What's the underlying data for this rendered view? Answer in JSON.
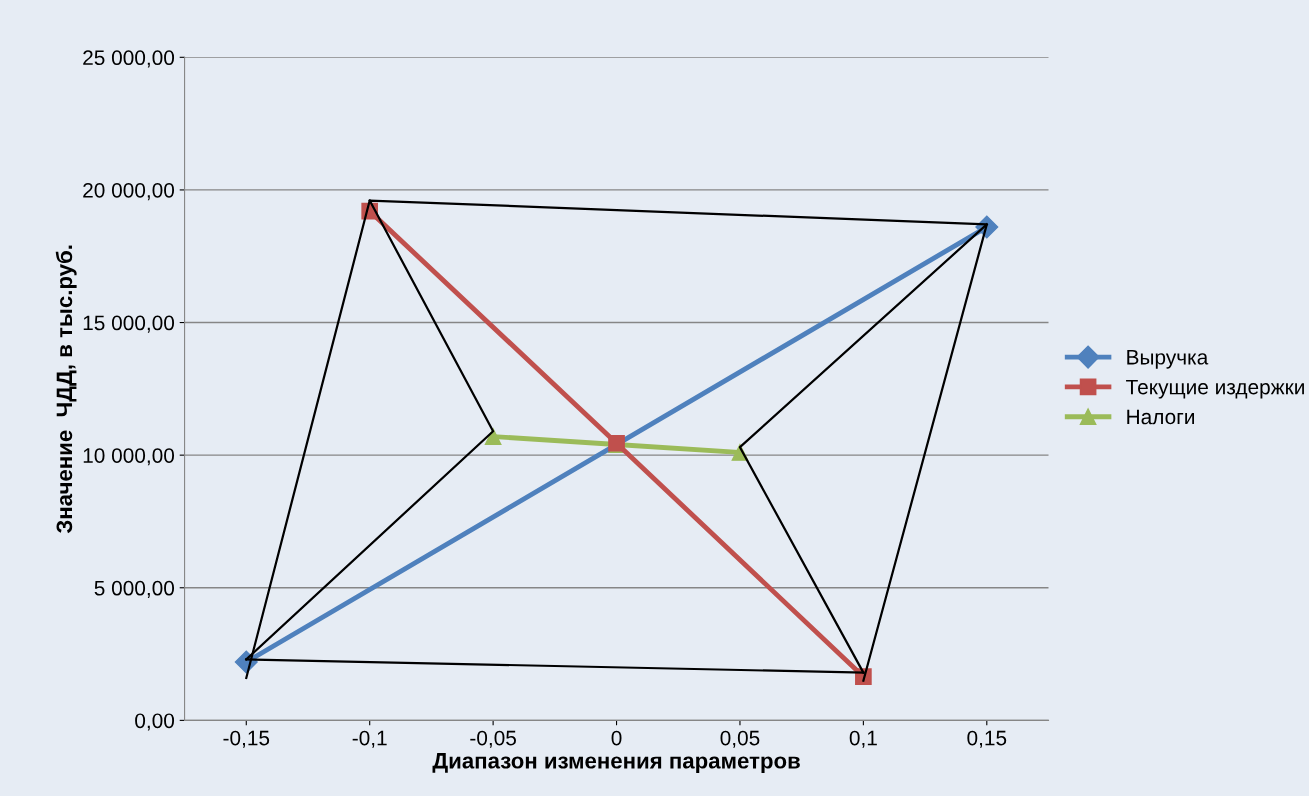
{
  "chart_data": {
    "type": "line",
    "xlabel": "Диапазон изменения параметров",
    "ylabel": "Значение  ЧДД, в тыс.руб.",
    "xlim": [
      -0.175,
      0.175
    ],
    "xticks": [
      {
        "value": -0.15,
        "label": "-0,15"
      },
      {
        "value": -0.1,
        "label": "-0,1"
      },
      {
        "value": -0.05,
        "label": "-0,05"
      },
      {
        "value": 0,
        "label": "0"
      },
      {
        "value": 0.05,
        "label": "0,05"
      },
      {
        "value": 0.1,
        "label": "0,1"
      },
      {
        "value": 0.15,
        "label": "0,15"
      }
    ],
    "ylim": [
      0,
      25000
    ],
    "yticks": [
      {
        "value": 0,
        "label": "0,00"
      },
      {
        "value": 5000,
        "label": "5 000,00"
      },
      {
        "value": 10000,
        "label": "10 000,00"
      },
      {
        "value": 15000,
        "label": "15 000,00"
      },
      {
        "value": 20000,
        "label": "20 000,00"
      },
      {
        "value": 25000,
        "label": "25 000,00"
      }
    ],
    "grid": "y",
    "legend": "right",
    "series": [
      {
        "name": "Выручка",
        "color": "#4f81bd",
        "marker": "diamond",
        "x": [
          -0.15,
          0.15
        ],
        "values": [
          2200,
          18600
        ]
      },
      {
        "name": "Текущие издержки",
        "color": "#c0504d",
        "marker": "square",
        "x": [
          -0.1,
          0,
          0.1
        ],
        "values": [
          19200,
          10450,
          1650
        ]
      },
      {
        "name": "Налоги",
        "color": "#9bbb59",
        "marker": "triangle",
        "x": [
          -0.05,
          0,
          0.05
        ],
        "values": [
          10700,
          10400,
          10100
        ]
      },
      {
        "color": "#000000",
        "marker": "none",
        "x": [
          -0.15,
          -0.1,
          0.15,
          0.1
        ],
        "values": [
          1600,
          19600,
          18700,
          1500
        ]
      },
      {
        "color": "#000000",
        "marker": "none",
        "x": [
          -0.15,
          0.1
        ],
        "values": [
          2300,
          1800
        ]
      },
      {
        "color": "#000000",
        "marker": "none",
        "x": [
          -0.15,
          -0.05,
          -0.1
        ],
        "values": [
          2300,
          10900,
          19600
        ]
      },
      {
        "color": "#000000",
        "marker": "none",
        "x": [
          0.15,
          0.05,
          0.1
        ],
        "values": [
          18700,
          10300,
          1800
        ]
      }
    ]
  }
}
